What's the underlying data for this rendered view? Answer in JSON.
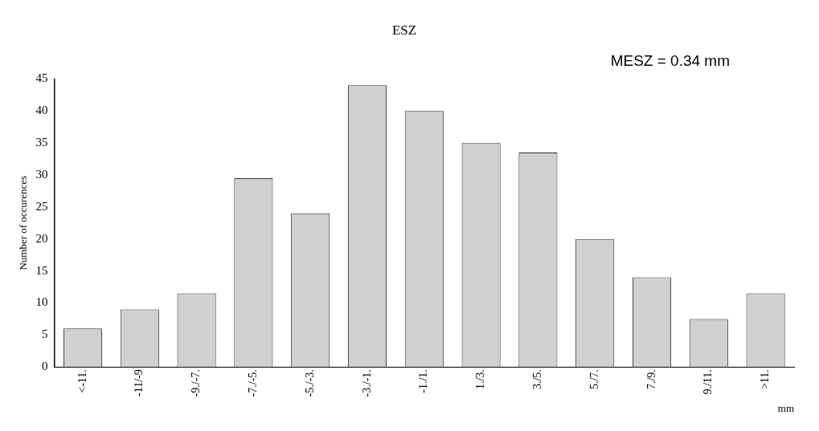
{
  "chart_data": {
    "type": "bar",
    "title": "ESZ",
    "xlabel": "mm",
    "ylabel": "Number of occurences",
    "annotations": [
      "MESZ = 0.34 mm"
    ],
    "categories": [
      "<-11.",
      "-11/-9",
      "-9./-7.",
      "-7./-5.",
      "-5./-3.",
      "-3./-1.",
      "-1./1.",
      "1./3.",
      "3./5.",
      "5./7.",
      "7./9.",
      "9./11.",
      ">11."
    ],
    "values": [
      6,
      9,
      11.5,
      29.5,
      24,
      44,
      40,
      35,
      33.5,
      20,
      14,
      7.5,
      11.5
    ],
    "color": "#d0d0d0",
    "ylim": [
      0,
      45
    ],
    "yticks": [
      0,
      5,
      10,
      15,
      20,
      25,
      30,
      35,
      40,
      45
    ],
    "grid": false,
    "legend": false
  }
}
